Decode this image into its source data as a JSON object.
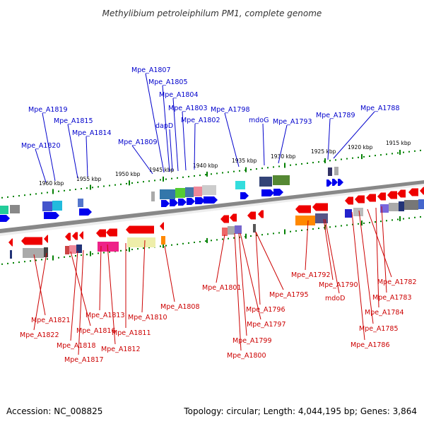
{
  "title": "Methylibium petroleiphilum PM1, complete genome",
  "footer": {
    "accession": "Accession: NC_008825",
    "summary": "Topology: circular; Length: 4,044,195 bp; Genes: 3,864"
  },
  "scale": {
    "ticks": [
      "1960 kbp",
      "1955 kbp",
      "1950 kbp",
      "1945 kbp",
      "1940 kbp",
      "1935 kbp",
      "1930 kbp",
      "1925 kbp",
      "1920 kbp",
      "1915 kbp"
    ]
  },
  "genes_forward": [
    {
      "name": "Mpe_A1820"
    },
    {
      "name": "Mpe_A1819"
    },
    {
      "name": "Mpe_A1815"
    },
    {
      "name": "Mpe_A1814"
    },
    {
      "name": "Mpe_A1809"
    },
    {
      "name": "Mpe_A1807"
    },
    {
      "name": "Mpe_A1805"
    },
    {
      "name": "Mpe_A1804"
    },
    {
      "name": "dapD"
    },
    {
      "name": "Mpe_A1803"
    },
    {
      "name": "Mpe_A1802"
    },
    {
      "name": "Mpe_A1798"
    },
    {
      "name": "mdoG"
    },
    {
      "name": "Mpe_A1793"
    },
    {
      "name": "Mpe_A1789"
    },
    {
      "name": "Mpe_A1788"
    }
  ],
  "genes_reverse": [
    {
      "name": "Mpe_A1821"
    },
    {
      "name": "Mpe_A1822"
    },
    {
      "name": "Mpe_A1816"
    },
    {
      "name": "Mpe_A1818"
    },
    {
      "name": "Mpe_A1817"
    },
    {
      "name": "Mpe_A1813"
    },
    {
      "name": "Mpe_A1811"
    },
    {
      "name": "Mpe_A1812"
    },
    {
      "name": "Mpe_A1810"
    },
    {
      "name": "Mpe_A1808"
    },
    {
      "name": "Mpe_A1801"
    },
    {
      "name": "Mpe_A1795"
    },
    {
      "name": "Mpe_A1796"
    },
    {
      "name": "Mpe_A1797"
    },
    {
      "name": "Mpe_A1799"
    },
    {
      "name": "Mpe_A1800"
    },
    {
      "name": "Mpe_A1792"
    },
    {
      "name": "Mpe_A1790"
    },
    {
      "name": "mdoD"
    },
    {
      "name": "Mpe_A1782"
    },
    {
      "name": "Mpe_A1783"
    },
    {
      "name": "Mpe_A1784"
    },
    {
      "name": "Mpe_A1785"
    },
    {
      "name": "Mpe_A1786"
    }
  ],
  "colors": {
    "forward_strand": "#0000ee",
    "reverse_strand": "#ee0000",
    "forward_label": "#0000cc",
    "reverse_label": "#cc0000",
    "backbone": "#888888",
    "ticks": "#008000"
  }
}
